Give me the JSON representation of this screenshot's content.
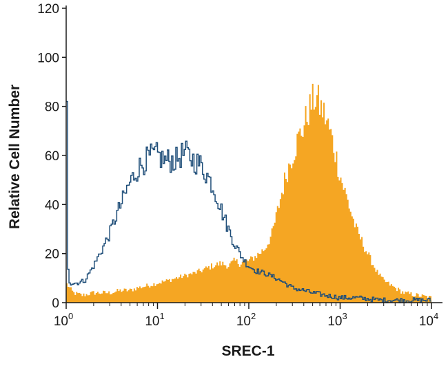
{
  "chart_data": {
    "type": "area",
    "xlabel": "SREC-1",
    "ylabel": "Relative Cell Number",
    "x_scale": "log",
    "xlim": [
      1,
      10000
    ],
    "ylim": [
      0,
      120
    ],
    "x_ticks": [
      {
        "value": 1,
        "base": "10",
        "exp": "0"
      },
      {
        "value": 10,
        "base": "10",
        "exp": "1"
      },
      {
        "value": 100,
        "base": "10",
        "exp": "2"
      },
      {
        "value": 1000,
        "base": "10",
        "exp": "3"
      },
      {
        "value": 10000,
        "base": "10",
        "exp": "4"
      }
    ],
    "y_ticks": [
      "0",
      "20",
      "40",
      "60",
      "80",
      "100",
      "120"
    ],
    "grid": false,
    "legend": "none",
    "series": [
      {
        "style": "filled",
        "color": "#f5a623",
        "points": [
          [
            1.0,
            8
          ],
          [
            1.2,
            4
          ],
          [
            1.5,
            3
          ],
          [
            2.0,
            4
          ],
          [
            2.5,
            4
          ],
          [
            3.0,
            4
          ],
          [
            4.0,
            5
          ],
          [
            5.0,
            5
          ],
          [
            6.0,
            6
          ],
          [
            8.0,
            7
          ],
          [
            10,
            8
          ],
          [
            13,
            9
          ],
          [
            16,
            10
          ],
          [
            20,
            11
          ],
          [
            25,
            12
          ],
          [
            30,
            13
          ],
          [
            40,
            15
          ],
          [
            50,
            16
          ],
          [
            60,
            15
          ],
          [
            70,
            17
          ],
          [
            80,
            16
          ],
          [
            90,
            17
          ],
          [
            100,
            17
          ],
          [
            120,
            19
          ],
          [
            150,
            22
          ],
          [
            180,
            28
          ],
          [
            200,
            35
          ],
          [
            230,
            45
          ],
          [
            260,
            53
          ],
          [
            300,
            60
          ],
          [
            350,
            67
          ],
          [
            400,
            72
          ],
          [
            450,
            78
          ],
          [
            500,
            82
          ],
          [
            550,
            84
          ],
          [
            600,
            80
          ],
          [
            650,
            78
          ],
          [
            700,
            75
          ],
          [
            800,
            68
          ],
          [
            900,
            60
          ],
          [
            1000,
            52
          ],
          [
            1200,
            42
          ],
          [
            1500,
            30
          ],
          [
            2000,
            20
          ],
          [
            2500,
            13
          ],
          [
            3000,
            9
          ],
          [
            4000,
            6
          ],
          [
            5000,
            4
          ],
          [
            7000,
            3
          ],
          [
            10000,
            2
          ]
        ]
      },
      {
        "style": "outline",
        "color": "#1f4e79",
        "points": [
          [
            1.0,
            82
          ],
          [
            1.03,
            25
          ],
          [
            1.06,
            12
          ],
          [
            1.1,
            8
          ],
          [
            1.3,
            8
          ],
          [
            1.6,
            9
          ],
          [
            2.0,
            15
          ],
          [
            2.5,
            22
          ],
          [
            3.0,
            28
          ],
          [
            3.5,
            35
          ],
          [
            4.0,
            40
          ],
          [
            5.0,
            49
          ],
          [
            6.0,
            54
          ],
          [
            7.0,
            57
          ],
          [
            8.0,
            59
          ],
          [
            9.0,
            60
          ],
          [
            10,
            60
          ],
          [
            12,
            58
          ],
          [
            14,
            58
          ],
          [
            16,
            58
          ],
          [
            18,
            60
          ],
          [
            20,
            61
          ],
          [
            25,
            58
          ],
          [
            30,
            56
          ],
          [
            35,
            52
          ],
          [
            40,
            48
          ],
          [
            45,
            43
          ],
          [
            50,
            38
          ],
          [
            60,
            30
          ],
          [
            70,
            24
          ],
          [
            80,
            20
          ],
          [
            90,
            17
          ],
          [
            100,
            15
          ],
          [
            120,
            13
          ],
          [
            150,
            12
          ],
          [
            200,
            10
          ],
          [
            250,
            8
          ],
          [
            300,
            6
          ],
          [
            400,
            5
          ],
          [
            500,
            4
          ],
          [
            700,
            3
          ],
          [
            1000,
            2
          ],
          [
            1500,
            2
          ],
          [
            2000,
            1.5
          ],
          [
            3000,
            1
          ],
          [
            5000,
            1
          ],
          [
            10000,
            1
          ]
        ]
      }
    ]
  }
}
